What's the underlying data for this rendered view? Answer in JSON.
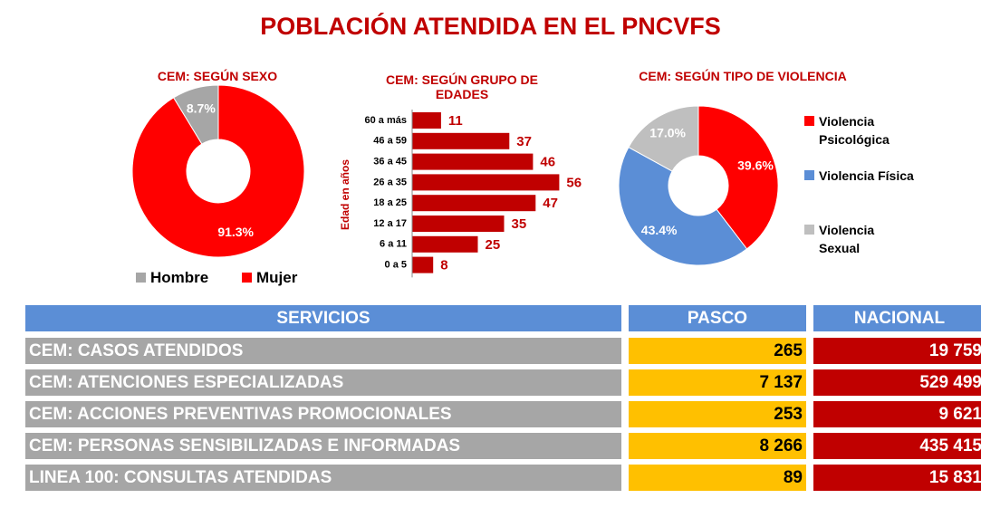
{
  "title": "POBLACIÓN ATENDIDA EN EL PNCVFS",
  "chart_data": [
    {
      "type": "pie",
      "title": "CEM: SEGÚN SEXO",
      "donut": true,
      "direction": "counterclockwise",
      "legend": "bottom",
      "categories": [
        "Hombre",
        "Mujer"
      ],
      "values": [
        8.7,
        91.3
      ],
      "value_labels": [
        "8.7%",
        "91.3%"
      ],
      "colors": [
        "#a6a6a6",
        "#ff0000"
      ]
    },
    {
      "type": "bar",
      "title": "CEM: SEGÚN GRUPO DE EDADES",
      "orientation": "horizontal",
      "y_label": "Edad en años",
      "categories": [
        "60 a más",
        "46 a 59",
        "36 a 45",
        "26 a 35",
        "18 a 25",
        "12 a 17",
        "6 a 11",
        "0 a 5"
      ],
      "values": [
        11,
        37,
        46,
        56,
        47,
        35,
        25,
        8
      ],
      "xlim": [
        0,
        60
      ],
      "color": "#c00000"
    },
    {
      "type": "pie",
      "title": "CEM: SEGÚN TIPO DE VIOLENCIA",
      "donut": true,
      "direction": "clockwise",
      "legend": "right",
      "categories": [
        "Violencia Psicológica",
        "Violencia Física",
        "Violencia Sexual"
      ],
      "values": [
        39.6,
        43.4,
        17.0
      ],
      "value_labels": [
        "39.6%",
        "43.4%",
        "17.0%"
      ],
      "colors": [
        "#ff0000",
        "#5b8ed6",
        "#bfbfbf"
      ]
    }
  ],
  "table": {
    "header": [
      "SERVICIOS",
      "PASCO",
      "NACIONAL"
    ],
    "rows": [
      [
        "CEM: CASOS ATENDIDOS",
        "265",
        "19 759"
      ],
      [
        "CEM: ATENCIONES ESPECIALIZADAS",
        "7 137",
        "529 499"
      ],
      [
        "CEM: ACCIONES PREVENTIVAS PROMOCIONALES",
        "253",
        "9 621"
      ],
      [
        "CEM: PERSONAS SENSIBILIZADAS E INFORMADAS",
        "8 266",
        "435 415"
      ],
      [
        "LINEA 100: CONSULTAS ATENDIDAS",
        "89",
        "15 831"
      ]
    ]
  }
}
